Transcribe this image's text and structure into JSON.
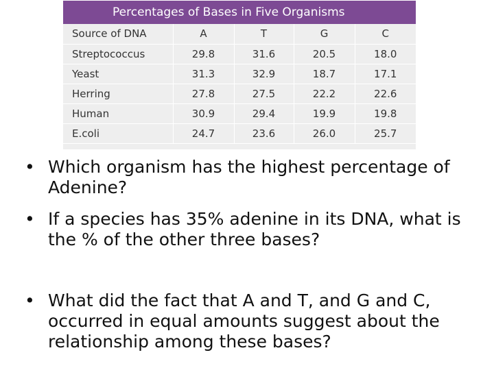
{
  "table": {
    "title": "Percentages of Bases in Five Organisms",
    "header_color": "#7d4a94",
    "columns": [
      "Source of DNA",
      "A",
      "T",
      "G",
      "C"
    ],
    "rows": [
      [
        "Streptococcus",
        "29.8",
        "31.6",
        "20.5",
        "18.0"
      ],
      [
        "Yeast",
        "31.3",
        "32.9",
        "18.7",
        "17.1"
      ],
      [
        "Herring",
        "27.8",
        "27.5",
        "22.2",
        "22.6"
      ],
      [
        "Human",
        "30.9",
        "29.4",
        "19.9",
        "19.8"
      ],
      [
        "E.coli",
        "24.7",
        "23.6",
        "26.0",
        "25.7"
      ]
    ]
  },
  "bullet_glyph": "•",
  "questions": [
    "Which organism has the highest percentage of Adenine?",
    "If a species has 35% adenine in its DNA, what is the % of the other three bases?",
    "What did the fact that A and T, and G and C, occurred in equal amounts suggest about the relationship among these bases?"
  ]
}
